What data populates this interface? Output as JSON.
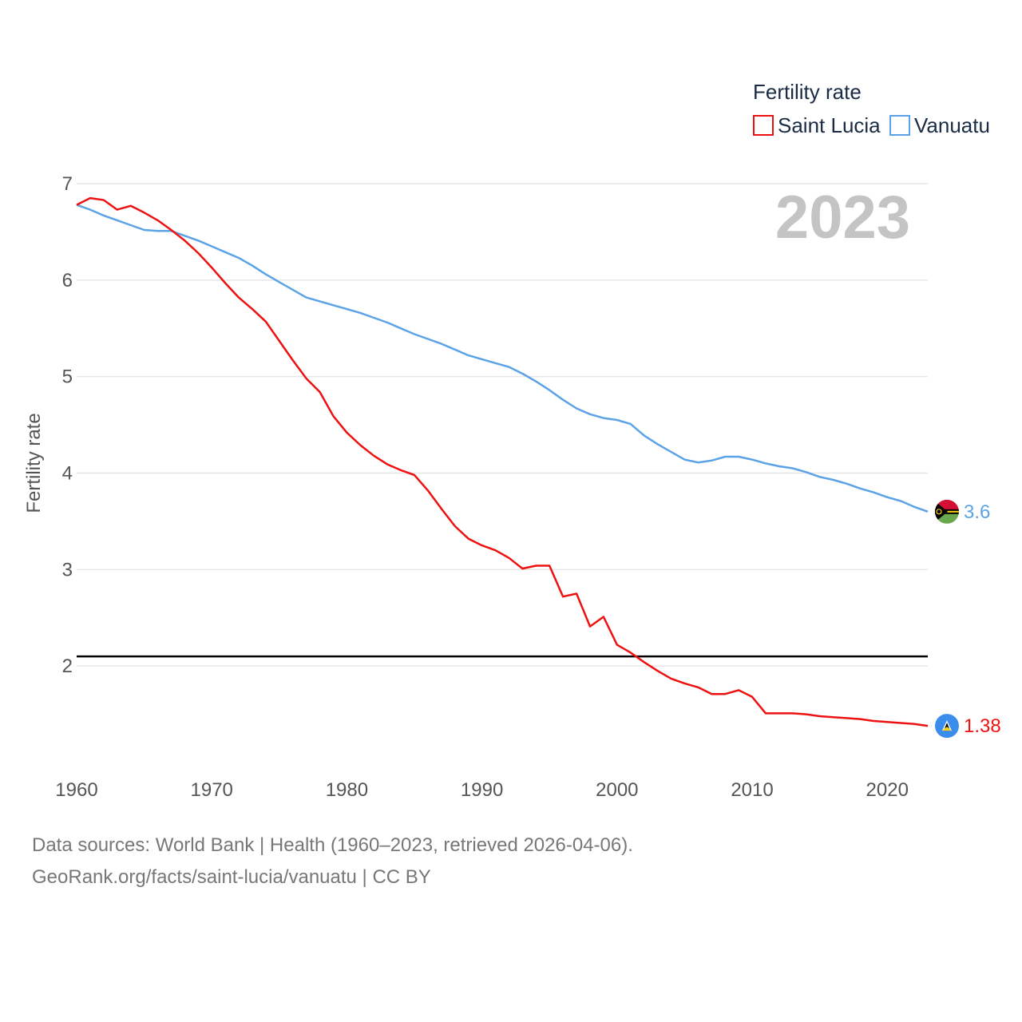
{
  "chart_data": {
    "type": "line",
    "title": "",
    "legend_title": "Fertility rate",
    "year_label": "2023",
    "ylabel": "Fertility rate",
    "xlabel": "",
    "xlim": [
      1960,
      2023
    ],
    "ylim": [
      1.0,
      7.0
    ],
    "x_ticks": [
      1960,
      1970,
      1980,
      1990,
      2000,
      2010,
      2020
    ],
    "y_ticks": [
      2,
      3,
      4,
      5,
      6,
      7
    ],
    "reference_line": 2.1,
    "legend_position": "top-right",
    "series": [
      {
        "name": "Saint Lucia",
        "color": "#ee1111",
        "end_label": "1.38",
        "x": [
          1960,
          1961,
          1962,
          1963,
          1964,
          1965,
          1966,
          1967,
          1968,
          1969,
          1970,
          1971,
          1972,
          1973,
          1974,
          1975,
          1976,
          1977,
          1978,
          1979,
          1980,
          1981,
          1982,
          1983,
          1984,
          1985,
          1986,
          1987,
          1988,
          1989,
          1990,
          1991,
          1992,
          1993,
          1994,
          1995,
          1996,
          1997,
          1998,
          1999,
          2000,
          2001,
          2002,
          2003,
          2004,
          2005,
          2006,
          2007,
          2008,
          2009,
          2010,
          2011,
          2012,
          2013,
          2014,
          2015,
          2016,
          2017,
          2018,
          2019,
          2020,
          2021,
          2022,
          2023
        ],
        "values": [
          6.78,
          6.85,
          6.83,
          6.73,
          6.77,
          6.7,
          6.62,
          6.52,
          6.41,
          6.28,
          6.13,
          5.97,
          5.82,
          5.7,
          5.57,
          5.37,
          5.17,
          4.98,
          4.84,
          4.59,
          4.42,
          4.29,
          4.18,
          4.09,
          4.03,
          3.98,
          3.82,
          3.63,
          3.45,
          3.32,
          3.25,
          3.2,
          3.12,
          3.01,
          3.04,
          3.04,
          2.72,
          2.75,
          2.41,
          2.51,
          2.22,
          2.14,
          2.04,
          1.95,
          1.87,
          1.82,
          1.78,
          1.71,
          1.71,
          1.75,
          1.68,
          1.51,
          1.51,
          1.51,
          1.5,
          1.48,
          1.47,
          1.46,
          1.45,
          1.43,
          1.42,
          1.41,
          1.4,
          1.38
        ]
      },
      {
        "name": "Vanuatu",
        "color": "#5ba3e6",
        "end_label": "3.6",
        "x": [
          1960,
          1961,
          1962,
          1963,
          1964,
          1965,
          1966,
          1967,
          1968,
          1969,
          1970,
          1971,
          1972,
          1973,
          1974,
          1975,
          1976,
          1977,
          1978,
          1979,
          1980,
          1981,
          1982,
          1983,
          1984,
          1985,
          1986,
          1987,
          1988,
          1989,
          1990,
          1991,
          1992,
          1993,
          1994,
          1995,
          1996,
          1997,
          1998,
          1999,
          2000,
          2001,
          2002,
          2003,
          2004,
          2005,
          2006,
          2007,
          2008,
          2009,
          2010,
          2011,
          2012,
          2013,
          2014,
          2015,
          2016,
          2017,
          2018,
          2019,
          2020,
          2021,
          2022,
          2023
        ],
        "values": [
          6.78,
          6.73,
          6.67,
          6.62,
          6.57,
          6.52,
          6.51,
          6.51,
          6.46,
          6.41,
          6.35,
          6.29,
          6.23,
          6.15,
          6.06,
          5.98,
          5.9,
          5.82,
          5.78,
          5.74,
          5.7,
          5.66,
          5.61,
          5.56,
          5.5,
          5.44,
          5.39,
          5.34,
          5.28,
          5.22,
          5.18,
          5.14,
          5.1,
          5.03,
          4.95,
          4.86,
          4.76,
          4.67,
          4.61,
          4.57,
          4.55,
          4.51,
          4.39,
          4.3,
          4.22,
          4.14,
          4.11,
          4.13,
          4.17,
          4.17,
          4.14,
          4.1,
          4.07,
          4.05,
          4.01,
          3.96,
          3.93,
          3.89,
          3.84,
          3.8,
          3.75,
          3.71,
          3.65,
          3.6
        ]
      }
    ]
  },
  "footer": {
    "source_line": "Data sources: World Bank | Health (1960–2023, retrieved 2026-04-06).",
    "credit_line": "GeoRank.org/facts/saint-lucia/vanuatu | CC BY"
  }
}
